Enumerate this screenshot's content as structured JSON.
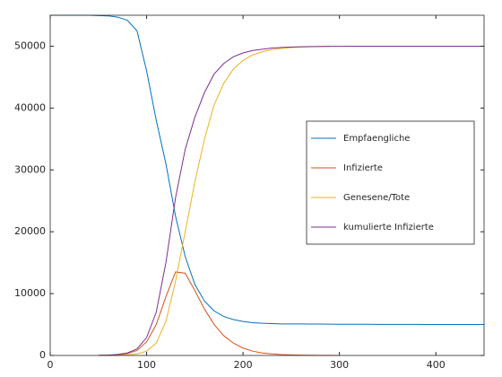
{
  "chart_data": {
    "type": "line",
    "x": [
      0,
      10,
      20,
      30,
      40,
      50,
      60,
      70,
      80,
      90,
      100,
      110,
      120,
      130,
      140,
      150,
      160,
      170,
      180,
      190,
      200,
      210,
      220,
      230,
      240,
      250,
      260,
      270,
      280,
      290,
      300,
      310,
      320,
      330,
      340,
      350,
      360,
      370,
      380,
      390,
      400,
      410,
      420,
      430,
      440,
      450
    ],
    "series": [
      {
        "name": "Empfaengliche",
        "color": "#0072bd",
        "values": [
          55000,
          55000,
          55000,
          55000,
          55000,
          54950,
          54900,
          54700,
          54200,
          52500,
          46000,
          38000,
          31000,
          22500,
          16000,
          11500,
          8800,
          7200,
          6300,
          5800,
          5500,
          5300,
          5200,
          5150,
          5100,
          5100,
          5090,
          5080,
          5070,
          5060,
          5050,
          5050,
          5040,
          5040,
          5030,
          5030,
          5020,
          5020,
          5020,
          5010,
          5010,
          5010,
          5000,
          5000,
          5000,
          5000
        ]
      },
      {
        "name": "Infizierte",
        "color": "#d95319",
        "values": [
          null,
          null,
          null,
          null,
          null,
          20,
          50,
          120,
          300,
          800,
          2200,
          5000,
          9500,
          13500,
          13300,
          10500,
          7500,
          5000,
          3200,
          2000,
          1200,
          700,
          400,
          250,
          150,
          90,
          50,
          30,
          20,
          10,
          5,
          null,
          null,
          null,
          null,
          null,
          null,
          null,
          null,
          null,
          null,
          null,
          null,
          null,
          null,
          null
        ]
      },
      {
        "name": "Genesene/Tote",
        "color": "#edb120",
        "values": [
          null,
          null,
          null,
          null,
          null,
          0,
          10,
          40,
          100,
          250,
          700,
          2000,
          5500,
          12000,
          20000,
          28000,
          35000,
          40500,
          44000,
          46300,
          47700,
          48600,
          49100,
          49450,
          49650,
          49780,
          49860,
          49910,
          49940,
          49960,
          null,
          null,
          null,
          null,
          null,
          null,
          null,
          null,
          null,
          null,
          null,
          null,
          null,
          null,
          null,
          null
        ]
      },
      {
        "name": "kumulierte Infizierte",
        "color": "#7e2f8e",
        "values": [
          null,
          null,
          null,
          null,
          null,
          20,
          60,
          160,
          400,
          1050,
          2900,
          7000,
          15000,
          25500,
          33300,
          38500,
          42500,
          45500,
          47200,
          48300,
          48900,
          49300,
          49500,
          49700,
          49800,
          49870,
          49910,
          49940,
          49960,
          49970,
          49980,
          49990,
          49990,
          50000,
          50000,
          50000,
          50000,
          50000,
          50000,
          50000,
          50000,
          50000,
          50000,
          50000,
          50000,
          50000
        ]
      }
    ],
    "xlim": [
      0,
      450
    ],
    "ylim": [
      0,
      55000
    ],
    "xticks": [
      0,
      100,
      200,
      300,
      400
    ],
    "yticks": [
      0,
      10000,
      20000,
      30000,
      40000,
      50000
    ],
    "legend": "right"
  }
}
